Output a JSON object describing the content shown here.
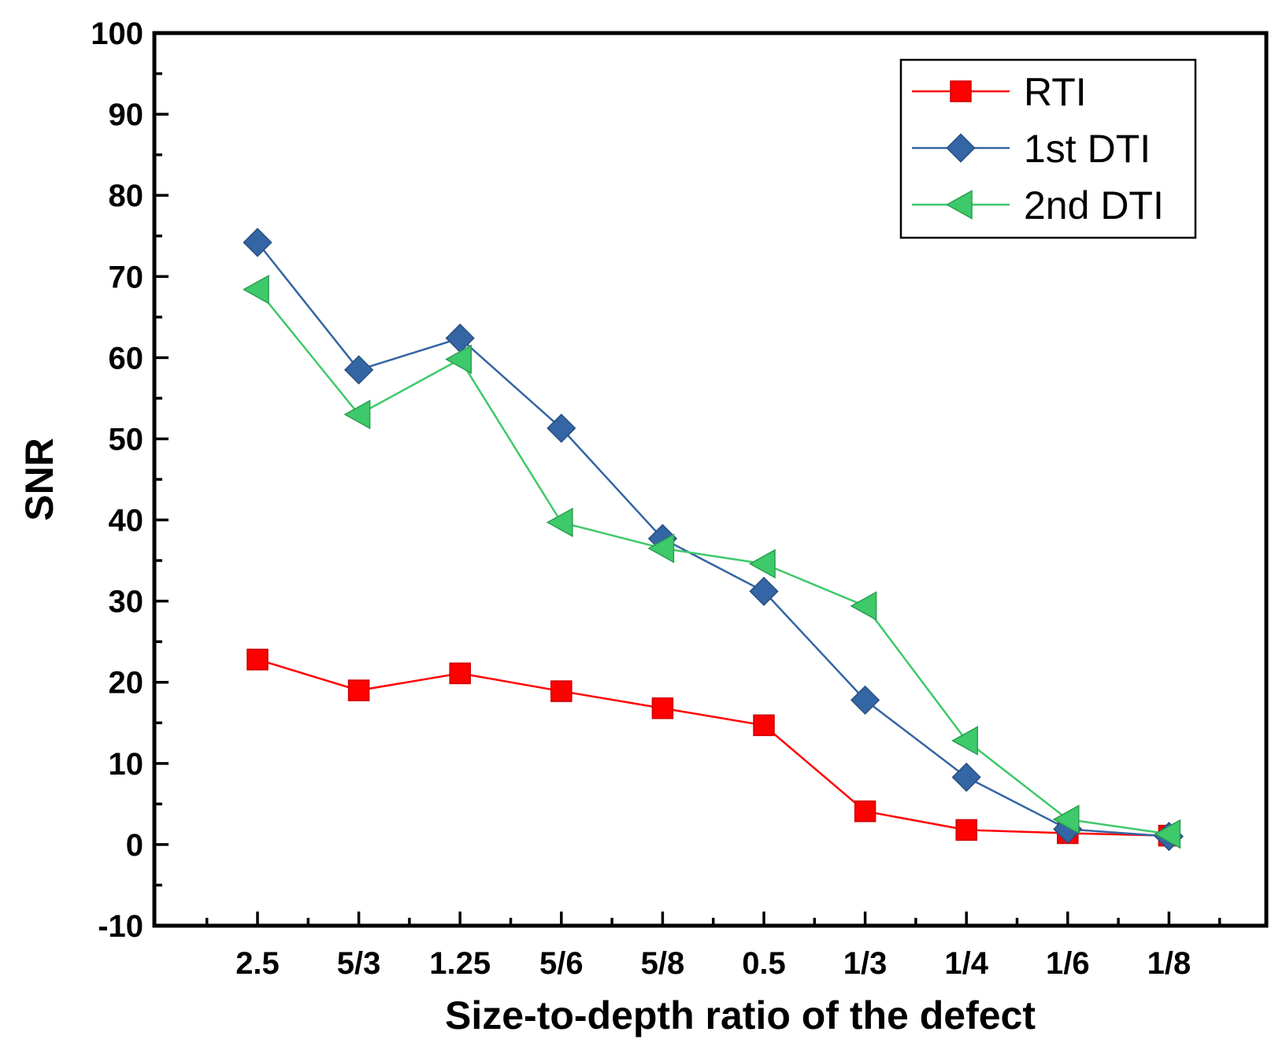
{
  "chart_data": {
    "type": "line",
    "categories": [
      "2.5",
      "5/3",
      "1.25",
      "5/6",
      "5/8",
      "0.5",
      "1/3",
      "1/4",
      "1/6",
      "1/8"
    ],
    "xlabel": "Size-to-depth ratio of the defect",
    "ylabel": "SNR",
    "ylim": [
      -10,
      100
    ],
    "yticks": [
      "-10",
      "0",
      "10",
      "20",
      "30",
      "40",
      "50",
      "60",
      "70",
      "80",
      "90",
      "100"
    ],
    "grid": false,
    "legend_position": "top-right",
    "series": [
      {
        "name": "RTI",
        "marker": "square",
        "color": "#ff0000",
        "edge": "#cc0000",
        "values": [
          22.8,
          19.0,
          21.1,
          18.9,
          16.8,
          14.7,
          4.1,
          1.8,
          1.4,
          1.1
        ]
      },
      {
        "name": "1st DTI",
        "marker": "diamond",
        "color": "#3465a4",
        "edge": "#2a4f80",
        "values": [
          74.2,
          58.5,
          62.4,
          51.3,
          37.7,
          31.2,
          17.8,
          8.3,
          1.9,
          1.0
        ]
      },
      {
        "name": "2nd DTI",
        "marker": "triangle-left",
        "color": "#3ec96a",
        "edge": "#2aa050",
        "values": [
          68.4,
          53.0,
          59.8,
          39.7,
          36.5,
          34.6,
          29.4,
          12.8,
          3.1,
          1.3
        ]
      }
    ]
  }
}
